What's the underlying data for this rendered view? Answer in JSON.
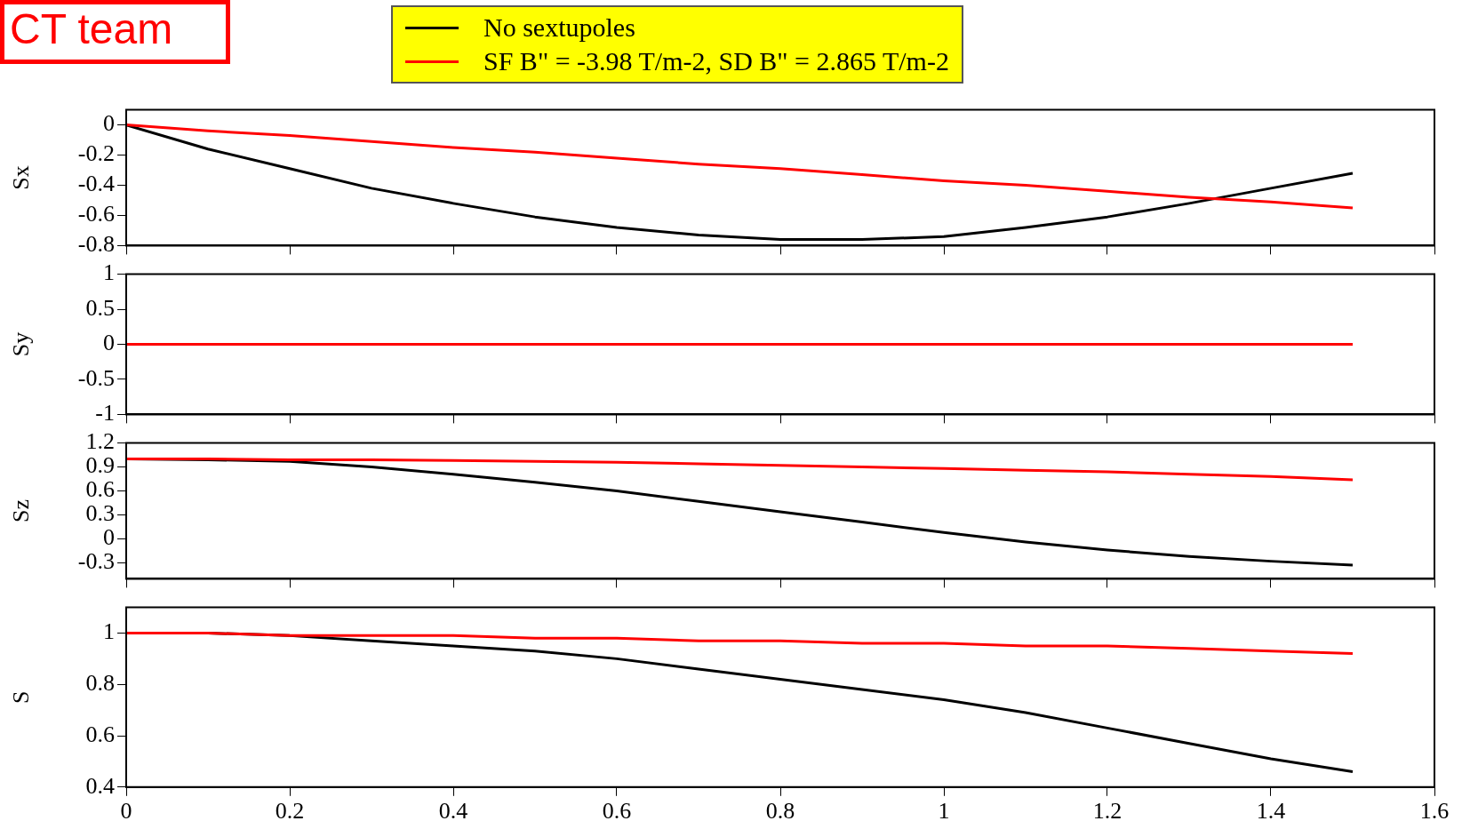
{
  "chart_data": [
    {
      "type": "line",
      "ylabel": "Sx",
      "annotations": [
        "CT team"
      ],
      "legend": "top",
      "marker": "none",
      "line_style": "solid",
      "grid": false,
      "tick_labels": "y",
      "x": [
        0,
        0.1,
        0.2,
        0.3,
        0.4,
        0.5,
        0.6,
        0.7,
        0.8,
        0.9,
        1.0,
        1.1,
        1.2,
        1.3,
        1.4,
        1.5
      ],
      "xlim": [
        0,
        1.6
      ],
      "xticks": [
        0,
        0.2,
        0.4,
        0.6,
        0.8,
        1,
        1.2,
        1.4,
        1.6
      ],
      "ylim": [
        -0.8,
        0.1
      ],
      "yticks": [
        -0.8,
        -0.6,
        -0.4,
        -0.2,
        0
      ],
      "series": [
        {
          "name": "No sextupoles",
          "color": "#000000",
          "values": [
            0,
            -0.16,
            -0.29,
            -0.42,
            -0.52,
            -0.61,
            -0.68,
            -0.73,
            -0.76,
            -0.76,
            -0.74,
            -0.68,
            -0.61,
            -0.52,
            -0.42,
            -0.32
          ]
        },
        {
          "name": "SF B\" = -3.98 T/m-2, SD B\" = 2.865 T/m-2",
          "color": "#ff0000",
          "values": [
            0,
            -0.04,
            -0.07,
            -0.11,
            -0.15,
            -0.18,
            -0.22,
            -0.26,
            -0.29,
            -0.33,
            -0.37,
            -0.4,
            -0.44,
            -0.48,
            -0.51,
            -0.55
          ]
        }
      ]
    },
    {
      "type": "line",
      "ylabel": "Sy",
      "marker": "none",
      "line_style": "solid",
      "grid": false,
      "tick_labels": "y",
      "x": [
        0,
        1.5
      ],
      "xlim": [
        0,
        1.6
      ],
      "xticks": [
        0,
        0.2,
        0.4,
        0.6,
        0.8,
        1,
        1.2,
        1.4,
        1.6
      ],
      "ylim": [
        -1,
        1
      ],
      "yticks": [
        -1,
        -0.5,
        0,
        0.5,
        1
      ],
      "series": [
        {
          "color": "#ff0000",
          "values": [
            0,
            0
          ]
        }
      ]
    },
    {
      "type": "line",
      "ylabel": "Sz",
      "marker": "none",
      "line_style": "solid",
      "grid": false,
      "tick_labels": "y",
      "x": [
        0,
        0.1,
        0.2,
        0.3,
        0.4,
        0.5,
        0.6,
        0.7,
        0.8,
        0.9,
        1.0,
        1.1,
        1.2,
        1.3,
        1.4,
        1.5
      ],
      "xlim": [
        0,
        1.6
      ],
      "xticks": [
        0,
        0.2,
        0.4,
        0.6,
        0.8,
        1,
        1.2,
        1.4,
        1.6
      ],
      "ylim": [
        -0.5,
        1.2
      ],
      "yticks": [
        -0.3,
        0,
        0.3,
        0.6,
        0.9,
        1.2
      ],
      "series": [
        {
          "color": "#000000",
          "values": [
            1,
            0.99,
            0.97,
            0.9,
            0.81,
            0.71,
            0.6,
            0.47,
            0.34,
            0.21,
            0.08,
            -0.04,
            -0.14,
            -0.22,
            -0.28,
            -0.33
          ]
        },
        {
          "color": "#ff0000",
          "values": [
            1,
            1,
            0.99,
            0.99,
            0.98,
            0.97,
            0.96,
            0.94,
            0.92,
            0.9,
            0.88,
            0.86,
            0.84,
            0.81,
            0.78,
            0.74
          ]
        }
      ]
    },
    {
      "type": "line",
      "ylabel": "S",
      "marker": "none",
      "line_style": "solid",
      "grid": false,
      "x": [
        0,
        0.1,
        0.2,
        0.3,
        0.4,
        0.5,
        0.6,
        0.7,
        0.8,
        0.9,
        1.0,
        1.1,
        1.2,
        1.3,
        1.4,
        1.5
      ],
      "xlim": [
        0,
        1.6
      ],
      "xticks": [
        0,
        0.2,
        0.4,
        0.6,
        0.8,
        1,
        1.2,
        1.4,
        1.6
      ],
      "ylim": [
        0.4,
        1.1
      ],
      "yticks": [
        0.4,
        0.6,
        0.8,
        1
      ],
      "series": [
        {
          "color": "#000000",
          "values": [
            1,
            1,
            0.99,
            0.97,
            0.95,
            0.93,
            0.9,
            0.86,
            0.82,
            0.78,
            0.74,
            0.69,
            0.63,
            0.57,
            0.51,
            0.46
          ]
        },
        {
          "color": "#ff0000",
          "values": [
            1,
            1,
            0.99,
            0.99,
            0.99,
            0.98,
            0.98,
            0.97,
            0.97,
            0.96,
            0.96,
            0.95,
            0.95,
            0.94,
            0.93,
            0.92
          ]
        }
      ]
    }
  ]
}
